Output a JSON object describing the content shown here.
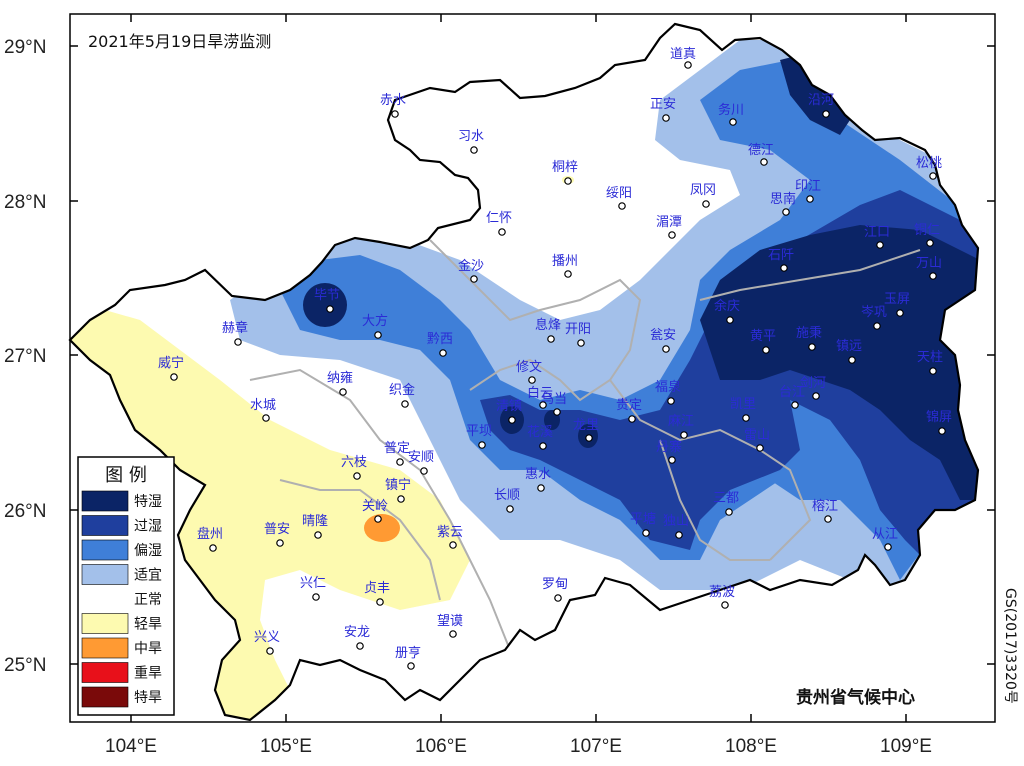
{
  "title": "2021年5月19日旱涝监测",
  "credit": "贵州省气候中心",
  "approval_no": "GS(2017)3320号",
  "axes": {
    "lon_ticks": [
      "104°E",
      "105°E",
      "106°E",
      "107°E",
      "108°E",
      "109°E"
    ],
    "lat_ticks": [
      "29°N",
      "28°N",
      "27°N",
      "26°N",
      "25°N"
    ]
  },
  "legend": {
    "title": "图  例",
    "items": [
      {
        "label": "特湿",
        "color": "#0b2466"
      },
      {
        "label": "过湿",
        "color": "#1f3f9e"
      },
      {
        "label": "偏湿",
        "color": "#3f7fd8"
      },
      {
        "label": "适宜",
        "color": "#a3c0ea"
      },
      {
        "label": "正常",
        "color": "#ffffff"
      },
      {
        "label": "轻旱",
        "color": "#fdfab0"
      },
      {
        "label": "中旱",
        "color": "#ff9a33"
      },
      {
        "label": "重旱",
        "color": "#e8101a"
      },
      {
        "label": "特旱",
        "color": "#7a0a0a"
      }
    ]
  },
  "cities": [
    {
      "name": "道真"
    },
    {
      "name": "正安"
    },
    {
      "name": "务川"
    },
    {
      "name": "沿河"
    },
    {
      "name": "赤水"
    },
    {
      "name": "习水"
    },
    {
      "name": "桐梓"
    },
    {
      "name": "德江"
    },
    {
      "name": "松桃"
    },
    {
      "name": "绥阳"
    },
    {
      "name": "凤冈"
    },
    {
      "name": "印江"
    },
    {
      "name": "思南"
    },
    {
      "name": "仁怀"
    },
    {
      "name": "湄潭"
    },
    {
      "name": "江口"
    },
    {
      "name": "铜仁"
    },
    {
      "name": "金沙"
    },
    {
      "name": "播州"
    },
    {
      "name": "石阡"
    },
    {
      "name": "万山"
    },
    {
      "name": "毕节"
    },
    {
      "name": "大方"
    },
    {
      "name": "赫章"
    },
    {
      "name": "息烽"
    },
    {
      "name": "开阳"
    },
    {
      "name": "余庆"
    },
    {
      "name": "岑巩"
    },
    {
      "name": "玉屏"
    },
    {
      "name": "黔西"
    },
    {
      "name": "瓮安"
    },
    {
      "name": "施秉"
    },
    {
      "name": "镇远"
    },
    {
      "name": "威宁"
    },
    {
      "name": "修文"
    },
    {
      "name": "纳雍"
    },
    {
      "name": "黄平"
    },
    {
      "name": "天柱"
    },
    {
      "name": "白云"
    },
    {
      "name": "织金"
    },
    {
      "name": "乌当"
    },
    {
      "name": "福泉"
    },
    {
      "name": "凯里"
    },
    {
      "name": "台江"
    },
    {
      "name": "清镇"
    },
    {
      "name": "贵定"
    },
    {
      "name": "水城"
    },
    {
      "name": "龙里"
    },
    {
      "name": "平坝"
    },
    {
      "name": "花溪"
    },
    {
      "name": "麻江"
    },
    {
      "name": "雷山"
    },
    {
      "name": "锦屏"
    },
    {
      "name": "普定"
    },
    {
      "name": "安顺"
    },
    {
      "name": "六枝"
    },
    {
      "name": "惠水"
    },
    {
      "name": "丹寨"
    },
    {
      "name": "剑河"
    },
    {
      "name": "镇宁"
    },
    {
      "name": "长顺"
    },
    {
      "name": "三都"
    },
    {
      "name": "关岭"
    },
    {
      "name": "晴隆"
    },
    {
      "name": "普安"
    },
    {
      "name": "紫云"
    },
    {
      "name": "盘州"
    },
    {
      "name": "平塘"
    },
    {
      "name": "独山"
    },
    {
      "name": "榕江"
    },
    {
      "name": "从江"
    },
    {
      "name": "兴仁"
    },
    {
      "name": "贞丰"
    },
    {
      "name": "罗甸"
    },
    {
      "name": "荔波"
    },
    {
      "name": "兴义"
    },
    {
      "name": "安龙"
    },
    {
      "name": "望谟"
    },
    {
      "name": "册亨"
    }
  ]
}
